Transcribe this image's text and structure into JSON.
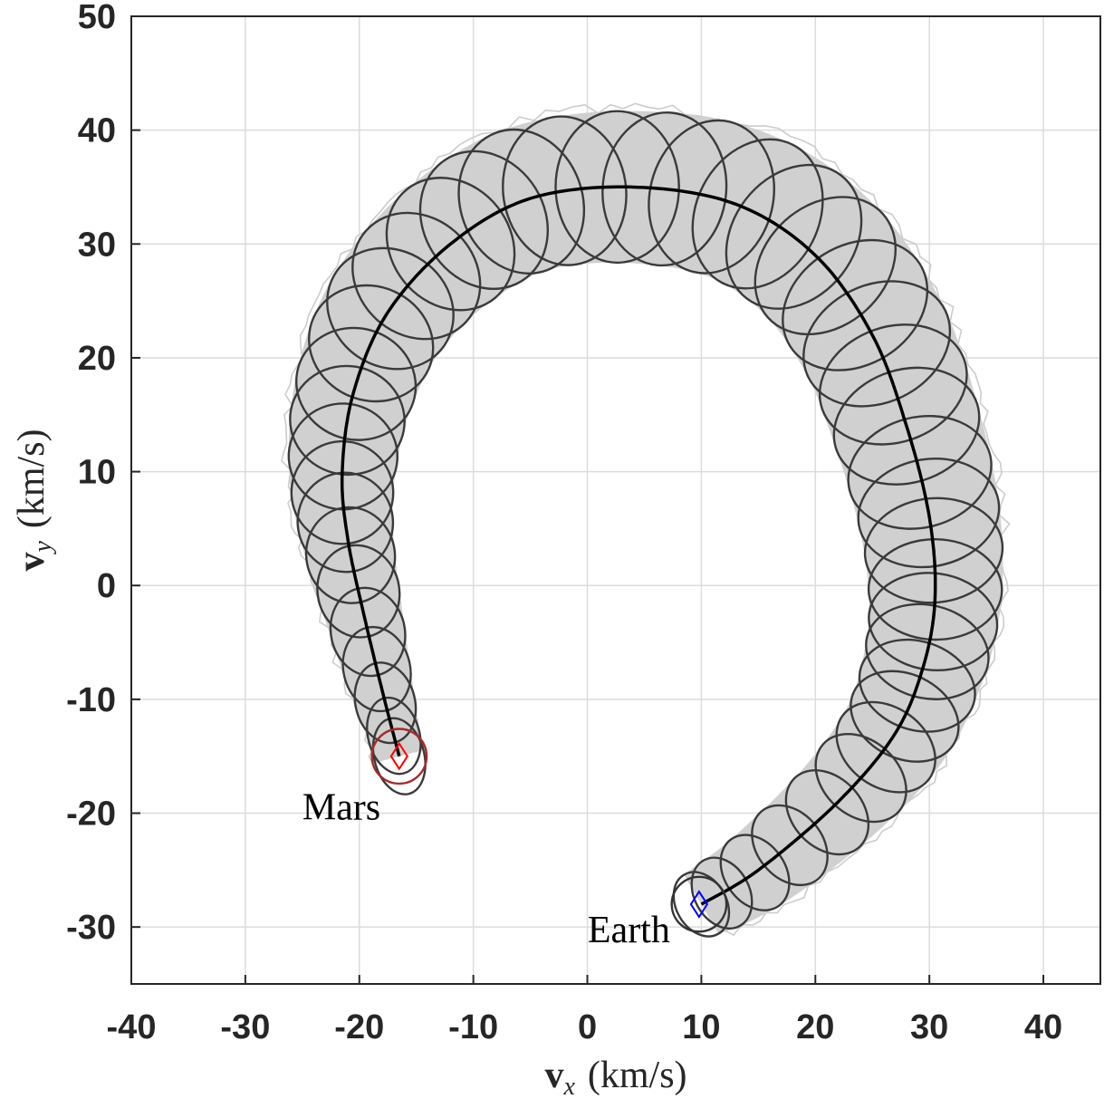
{
  "chart_data": {
    "type": "scatter",
    "xlabel": {
      "var": "v",
      "sub": "x",
      "unit": "(km/s)"
    },
    "ylabel": {
      "var": "v",
      "sub": "y",
      "unit": "(km/s)"
    },
    "xlim": [
      -40,
      45
    ],
    "ylim": [
      -35,
      50
    ],
    "xticks": [
      "-40",
      "-30",
      "-20",
      "-10",
      "0",
      "10",
      "20",
      "30",
      "40"
    ],
    "yticks": [
      "50",
      "40",
      "30",
      "20",
      "10",
      "0",
      "-10",
      "-20",
      "-30"
    ],
    "grid": true,
    "nominal_trajectory": [
      [
        -16.5,
        -15
      ],
      [
        -17.8,
        -10
      ],
      [
        -19.5,
        -3
      ],
      [
        -21,
        4
      ],
      [
        -21.5,
        10
      ],
      [
        -20.5,
        17
      ],
      [
        -17.5,
        24
      ],
      [
        -12,
        30
      ],
      [
        -5,
        34
      ],
      [
        4,
        35
      ],
      [
        13,
        33.5
      ],
      [
        20,
        29
      ],
      [
        25,
        22
      ],
      [
        28,
        14
      ],
      [
        30,
        6
      ],
      [
        30.5,
        -1
      ],
      [
        29.5,
        -7
      ],
      [
        27,
        -13
      ],
      [
        22,
        -19
      ],
      [
        15,
        -25
      ],
      [
        10,
        -28
      ]
    ],
    "ellipse_color": "#3a3a3a",
    "sample_color": "#cccccc",
    "fill_color": "#d0d0d0",
    "markers": [
      {
        "label": "Mars",
        "x": -16.5,
        "y": -15,
        "color": "#ff0000",
        "circle_color": "#a52a2a"
      },
      {
        "label": "Earth",
        "x": 9.8,
        "y": -28,
        "color": "#0000ff",
        "circle_color": "#333333"
      }
    ]
  }
}
